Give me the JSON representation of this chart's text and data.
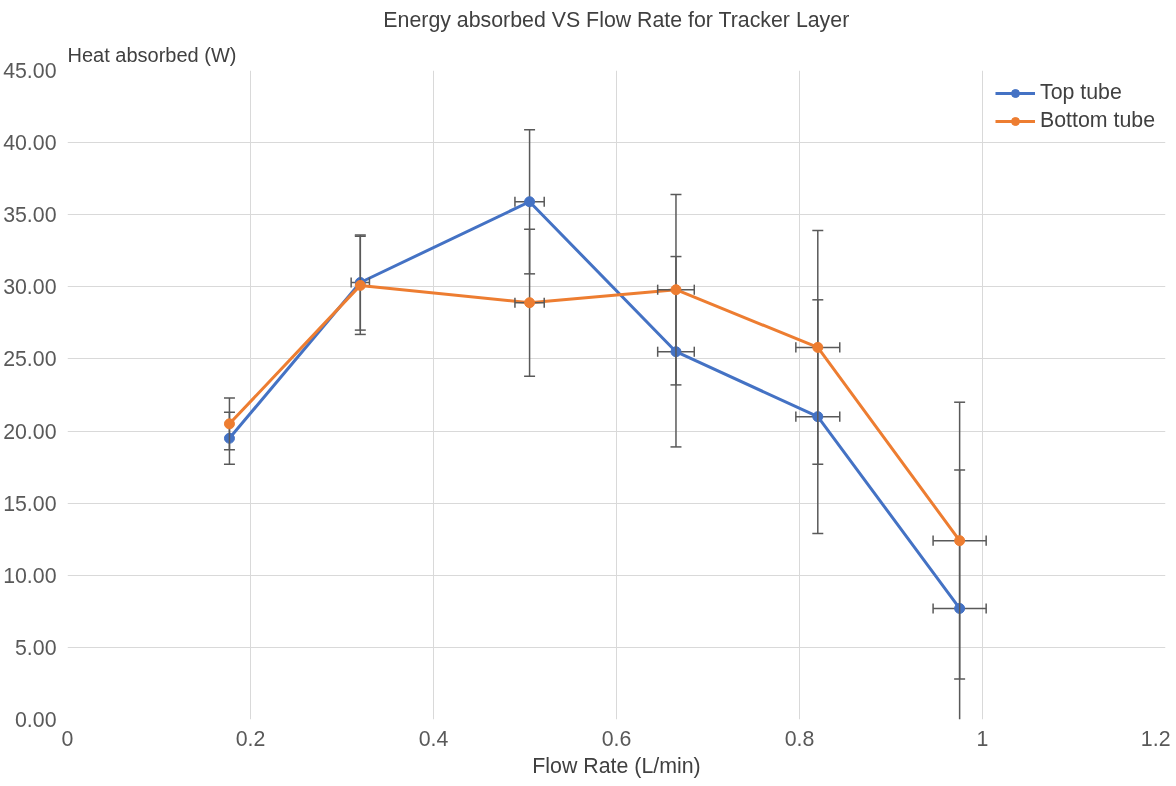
{
  "chart_data": {
    "type": "line",
    "title": "Energy absorbed VS Flow Rate for Tracker Layer",
    "xlabel": "Flow Rate (L/min)",
    "ylabel": "Heat absorbed (W)",
    "x": [
      0.177,
      0.32,
      0.505,
      0.665,
      0.82,
      0.975
    ],
    "series": [
      {
        "name": "Top tube",
        "color": "#4472c4",
        "values": [
          19.5,
          30.3,
          35.9,
          25.5,
          21.0,
          7.7
        ],
        "errors": [
          1.8,
          3.3,
          5.0,
          6.6,
          8.1,
          [
            0,
            17.3
          ]
        ],
        "xerrors": [
          null,
          0.01,
          0.016,
          0.02,
          0.024,
          0.029
        ]
      },
      {
        "name": "Bottom tube",
        "color": "#ed7d31",
        "values": [
          20.5,
          30.1,
          28.9,
          29.8,
          25.8,
          12.4
        ],
        "errors": [
          1.8,
          3.4,
          5.1,
          6.6,
          8.1,
          9.6
        ],
        "xerrors": [
          null,
          null,
          0.016,
          0.02,
          0.024,
          0.029
        ]
      }
    ],
    "xlim": [
      0,
      1.2
    ],
    "xticks": [
      0,
      0.2,
      0.4,
      0.6,
      0.8,
      1,
      1.2
    ],
    "ylim": [
      0,
      45
    ],
    "yticks": [
      {
        "value": 0,
        "label": "0.00"
      },
      {
        "value": 5,
        "label": "5.00"
      },
      {
        "value": 10,
        "label": "10.00"
      },
      {
        "value": 15,
        "label": "15.00"
      },
      {
        "value": 20,
        "label": "20.00"
      },
      {
        "value": 25,
        "label": "25.00"
      },
      {
        "value": 30,
        "label": "30.00"
      },
      {
        "value": 35,
        "label": "35.00"
      },
      {
        "value": 40,
        "label": "40.00"
      },
      {
        "value": 45,
        "label": "45.00"
      }
    ],
    "grid": true,
    "legend": "top right",
    "marker": "circle",
    "line_style": "solid"
  }
}
